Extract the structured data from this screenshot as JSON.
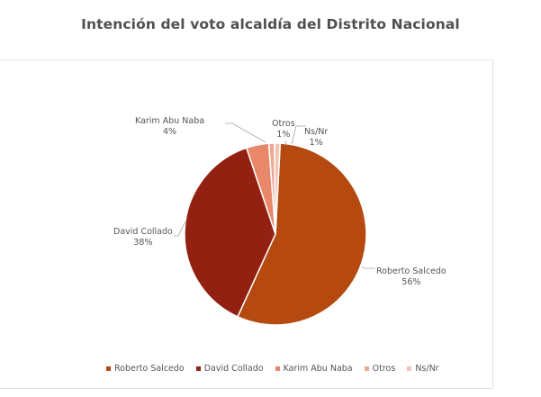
{
  "title": "Intención del voto alcaldía del Distrito Nacional",
  "chart_data": {
    "type": "pie",
    "title": "Intención del voto alcaldía del Distrito Nacional",
    "categories": [
      "Roberto Salcedo",
      "David Collado",
      "Karim Abu Naba",
      "Otros",
      "Ns/Nr"
    ],
    "values": [
      56,
      38,
      4,
      1,
      1
    ],
    "value_labels": [
      "56%",
      "38%",
      "4%",
      "1%",
      "1%"
    ],
    "colors": [
      "#b5490f",
      "#922112",
      "#e8876a",
      "#eda995",
      "#f2c4b8"
    ],
    "legend_position": "bottom"
  },
  "labels": [
    {
      "name": "Roberto Salcedo",
      "pct": "56%"
    },
    {
      "name": "David Collado",
      "pct": "38%"
    },
    {
      "name": "Karim Abu Naba",
      "pct": "4%"
    },
    {
      "name": "Otros",
      "pct": "1%"
    },
    {
      "name": "Ns/Nr",
      "pct": "1%"
    }
  ],
  "legend": [
    {
      "label": "Roberto Salcedo",
      "color": "#b5490f"
    },
    {
      "label": "David Collado",
      "color": "#922112"
    },
    {
      "label": "Karim Abu Naba",
      "color": "#e8876a"
    },
    {
      "label": "Otros",
      "color": "#eda995"
    },
    {
      "label": "Ns/Nr",
      "color": "#f2c4b8"
    }
  ]
}
